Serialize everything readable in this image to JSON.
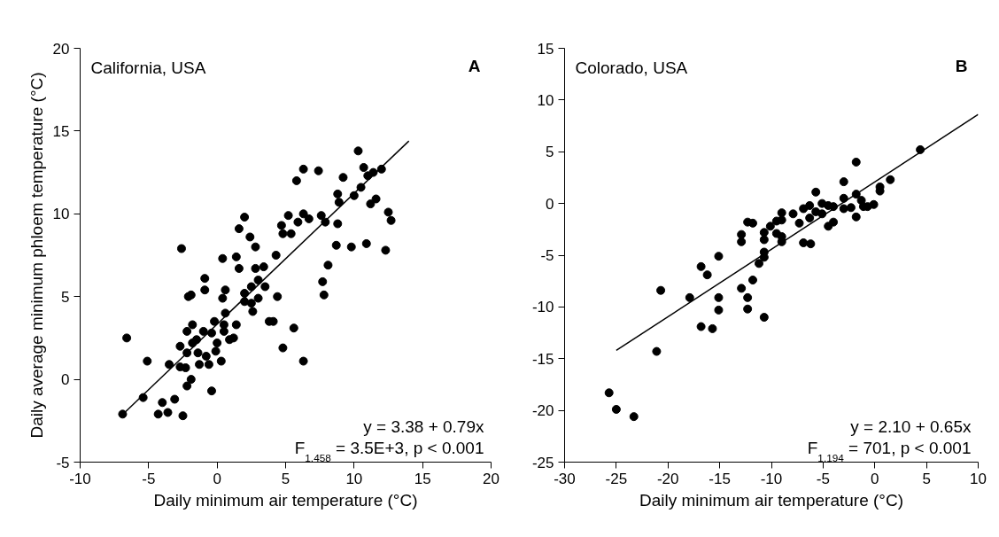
{
  "chart_data": [
    {
      "type": "scatter",
      "title": "A",
      "xlabel": "Daily minimum air temperature (°C)",
      "ylabel": "Daily average minimum phloem temperature (°C)",
      "annotations": [
        "California, USA",
        "y = 3.38 + 0.79x",
        "F$_{1,458}$ = 3.5E+3, p < 0.001"
      ],
      "xlim": [
        -10,
        20
      ],
      "xticks": [
        -10,
        -5,
        0,
        5,
        10,
        15,
        20
      ],
      "ylim": [
        -5,
        20
      ],
      "yticks": [
        -5,
        0,
        5,
        10,
        15,
        20
      ],
      "series": [
        {
          "marker": "circle",
          "color": "#000000",
          "x": [
            -6.9,
            -6.6,
            -5.4,
            -5.1,
            -4.3,
            -4.0,
            -3.6,
            -3.5,
            -3.1,
            -2.7,
            -2.6,
            -2.5,
            -2.7,
            -2.3,
            -2.2,
            -1.9,
            -2.2,
            -2.1,
            -1.9,
            -1.8,
            -2.2,
            -1.8,
            -1.5,
            -1.4,
            -1.3,
            -1.0,
            -0.9,
            -0.9,
            -0.8,
            -0.6,
            -0.4,
            -0.4,
            -0.2,
            -0.1,
            0.0,
            0.3,
            0.4,
            0.4,
            0.6,
            0.6,
            0.5,
            0.5,
            0.9,
            1.2,
            1.4,
            1.4,
            1.6,
            1.6,
            2.0,
            2.0,
            2.0,
            2.4,
            2.8,
            2.5,
            2.5,
            2.6,
            2.8,
            3.4,
            3.0,
            3.0,
            3.5,
            3.8,
            4.1,
            4.3,
            4.4,
            4.8,
            4.7,
            4.8,
            5.2,
            5.4,
            5.6,
            5.8,
            5.9,
            6.3,
            6.3,
            6.3,
            6.7,
            7.4,
            7.6,
            7.7,
            7.8,
            7.9,
            8.1,
            8.7,
            8.8,
            8.8,
            8.9,
            9.2,
            9.8,
            10.0,
            10.3,
            10.5,
            10.7,
            10.9,
            11.0,
            11.4,
            11.2,
            11.6,
            12.0,
            12.3,
            12.5,
            12.7
          ],
          "values": [
            -2.1,
            2.5,
            -1.1,
            1.1,
            -2.1,
            -1.4,
            -2.0,
            0.9,
            -1.2,
            2.0,
            7.9,
            -2.2,
            0.75,
            0.7,
            -0.4,
            0.0,
            2.9,
            5.0,
            5.1,
            3.3,
            1.6,
            2.2,
            2.4,
            1.6,
            0.9,
            2.9,
            6.1,
            5.4,
            1.4,
            0.9,
            -0.7,
            2.8,
            3.5,
            1.7,
            2.2,
            1.1,
            7.3,
            4.9,
            5.4,
            4.0,
            3.3,
            2.9,
            2.4,
            2.5,
            3.3,
            7.4,
            6.7,
            9.1,
            9.8,
            5.2,
            4.7,
            8.6,
            8.0,
            5.6,
            4.6,
            4.1,
            6.7,
            6.8,
            6.0,
            4.9,
            5.6,
            3.5,
            3.5,
            7.5,
            5.0,
            1.9,
            9.3,
            8.8,
            9.9,
            8.8,
            3.1,
            12.0,
            9.5,
            10.0,
            12.7,
            1.1,
            9.7,
            12.6,
            9.9,
            5.9,
            5.1,
            9.5,
            6.9,
            8.1,
            9.4,
            11.2,
            10.7,
            12.2,
            8.0,
            11.1,
            13.8,
            11.6,
            12.8,
            8.2,
            12.3,
            12.5,
            10.6,
            10.9,
            12.7,
            7.8,
            10.1,
            9.6
          ]
        },
        {
          "type": "line",
          "color": "#000000",
          "x": [
            -7,
            14
          ],
          "values": [
            -2.2,
            14.4
          ]
        }
      ]
    },
    {
      "type": "scatter",
      "title": "B",
      "xlabel": "Daily minimum air temperature (°C)",
      "annotations": [
        "Colorado, USA",
        "y = 2.10 + 0.65x",
        "F$_{1,194}$ = 701, p < 0.001"
      ],
      "xlim": [
        -30,
        10
      ],
      "xticks": [
        -30,
        -25,
        -20,
        -15,
        -10,
        -5,
        0,
        5,
        10
      ],
      "ylim": [
        -25,
        15
      ],
      "yticks": [
        -25,
        -20,
        -15,
        -10,
        -5,
        0,
        5,
        10,
        15
      ],
      "series": [
        {
          "marker": "circle",
          "color": "#000000",
          "x": [
            -25.7,
            -25.0,
            -23.3,
            -21.1,
            -20.7,
            -17.9,
            -16.8,
            -16.2,
            -16.8,
            -15.7,
            -15.1,
            -15.1,
            -15.1,
            -12.9,
            -12.9,
            -12.9,
            -12.3,
            -12.3,
            -12.3,
            -11.8,
            -11.8,
            -11.2,
            -10.7,
            -10.7,
            -10.7,
            -10.7,
            -10.7,
            -10.1,
            -9.5,
            -9.5,
            -9.0,
            -9.0,
            -9.0,
            -9.0,
            -7.9,
            -7.3,
            -6.9,
            -6.9,
            -6.2,
            -6.3,
            -6.3,
            -5.7,
            -5.7,
            -5.1,
            -5.1,
            -4.5,
            -4.5,
            -4.0,
            -4.0,
            -3.0,
            -3.0,
            -3.0,
            -2.3,
            -1.8,
            -1.8,
            -1.8,
            -1.3,
            -1.1,
            -0.7,
            -0.1,
            0.5,
            0.5,
            1.5,
            4.4
          ],
          "values": [
            -18.3,
            -19.9,
            -20.6,
            -14.3,
            -8.4,
            -9.1,
            -6.1,
            -6.9,
            -11.9,
            -12.1,
            -5.1,
            -9.1,
            -10.3,
            -3.0,
            -3.7,
            -8.2,
            -9.1,
            -10.2,
            -1.8,
            -1.9,
            -7.4,
            -5.8,
            -11.0,
            -2.8,
            -3.5,
            -4.7,
            -5.2,
            -2.2,
            -1.7,
            -2.9,
            -0.9,
            -3.7,
            -3.2,
            -1.6,
            -1.0,
            -1.9,
            -0.5,
            -3.8,
            -3.9,
            -0.2,
            -1.4,
            1.1,
            -0.8,
            0.0,
            -1.0,
            -0.2,
            -2.2,
            -0.3,
            -1.8,
            2.1,
            0.5,
            -0.5,
            -0.4,
            4.0,
            0.9,
            -1.3,
            0.3,
            -0.3,
            -0.3,
            -0.1,
            1.6,
            1.2,
            2.3,
            5.2
          ]
        },
        {
          "type": "line",
          "color": "#000000",
          "x": [
            -25,
            10
          ],
          "values": [
            -14.2,
            8.6
          ]
        }
      ]
    }
  ]
}
